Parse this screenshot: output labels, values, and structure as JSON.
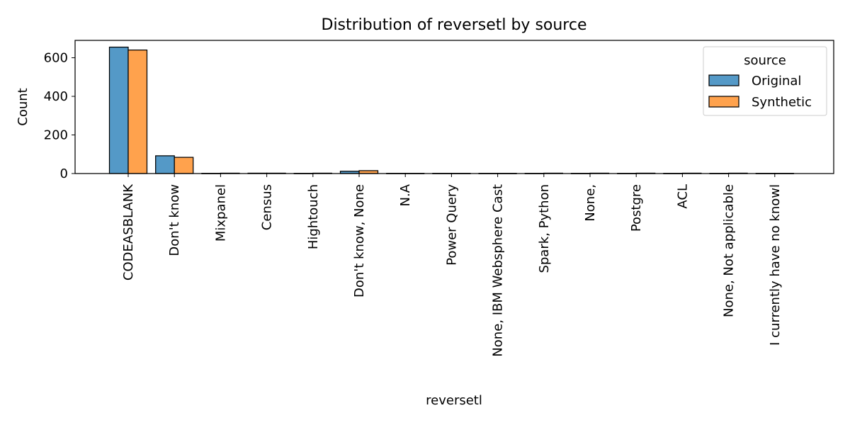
{
  "chart_data": {
    "type": "bar",
    "title": "Distribution of reversetl by source",
    "xlabel": "reversetl",
    "ylabel": "Count",
    "ylim": [
      0,
      690
    ],
    "yticks": [
      0,
      200,
      400,
      600
    ],
    "grid": false,
    "legend": {
      "title": "source",
      "placement": "top-right"
    },
    "categories": [
      "CODEASBLANK",
      "Don't know",
      "Mixpanel",
      "Census",
      "Hightouch",
      "Don't know, None",
      "N.A",
      "Power Query",
      "None, IBM Websphere Cast",
      "Spark, Python",
      "None,",
      "Postgre",
      "ACL",
      "None, Not applicable",
      "I currently have no knowl"
    ],
    "series": [
      {
        "name": "Original",
        "color": "#5499c7",
        "values": [
          655,
          92,
          1,
          2,
          1,
          12,
          1,
          1,
          1,
          1,
          1,
          1,
          1,
          1,
          1
        ]
      },
      {
        "name": "Synthetic",
        "color": "#ffa24d",
        "values": [
          640,
          84,
          2,
          2,
          2,
          15,
          1,
          1,
          1,
          2,
          2,
          2,
          2,
          2,
          1
        ]
      }
    ]
  }
}
